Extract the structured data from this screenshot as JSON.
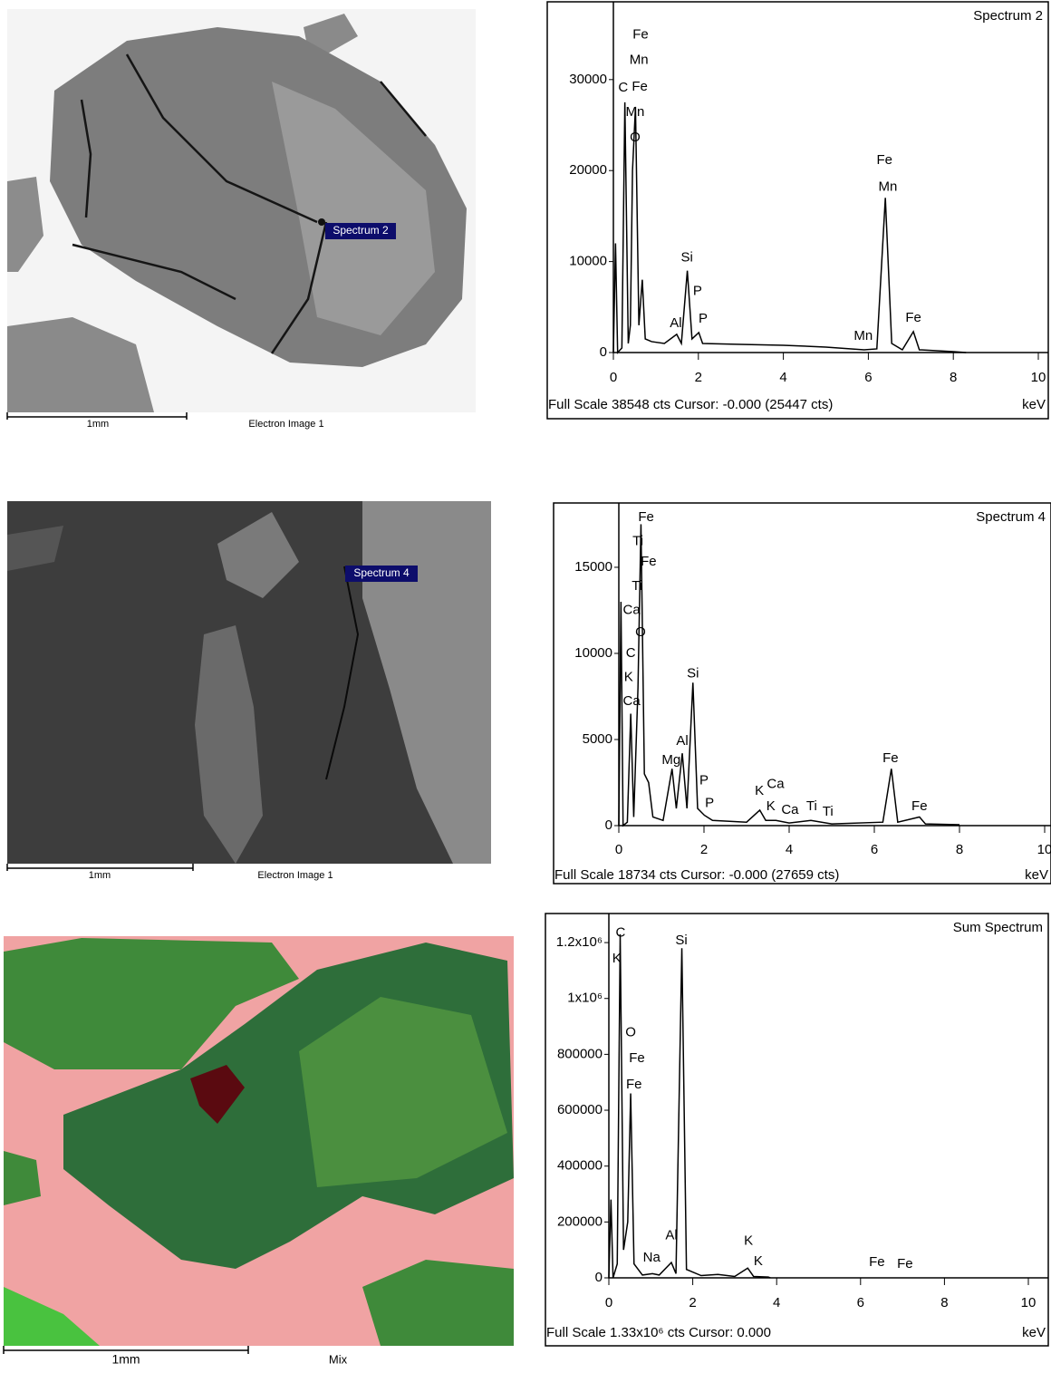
{
  "images": [
    {
      "marker": "Spectrum 2",
      "scale_bar": "1mm",
      "label": "Electron Image 1"
    },
    {
      "marker": "Spectrum 4",
      "scale_bar": "1mm",
      "label": "Electron Image 1"
    },
    {
      "scale_bar": "1mm",
      "label": "Mix"
    }
  ],
  "chart_data": [
    {
      "type": "line",
      "title": "Spectrum 2",
      "footer": "Full Scale 38548 cts Cursor: -0.000  (25447 cts)",
      "xlabel": "keV",
      "xlim": [
        0,
        10
      ],
      "xticks": [
        0,
        2,
        4,
        6,
        8,
        10
      ],
      "ylim": [
        0,
        38548
      ],
      "yticks": [
        0,
        10000,
        20000,
        30000
      ],
      "x": [
        0,
        0.05,
        0.1,
        0.2,
        0.27,
        0.35,
        0.4,
        0.45,
        0.52,
        0.6,
        0.68,
        0.75,
        0.9,
        1.2,
        1.49,
        1.6,
        1.74,
        1.85,
        2.01,
        2.1,
        3,
        4,
        5,
        5.9,
        6.2,
        6.4,
        6.55,
        6.8,
        7.06,
        7.2,
        8,
        8.3
      ],
      "series": [
        {
          "color": "#000000",
          "values": [
            0,
            12000,
            0,
            500,
            27500,
            1000,
            3000,
            20000,
            27000,
            3000,
            8000,
            1500,
            1200,
            1000,
            2000,
            1000,
            9000,
            1500,
            2200,
            1000,
            900,
            800,
            600,
            300,
            400,
            17000,
            1000,
            300,
            2300,
            300,
            100,
            0
          ]
        }
      ],
      "annotations": [
        {
          "text": "Fe",
          "x": 0.64,
          "y": 34900
        },
        {
          "text": "Mn",
          "x": 0.6,
          "y": 32100
        },
        {
          "text": "C",
          "x": 0.23,
          "y": 29100
        },
        {
          "text": "Fe",
          "x": 0.62,
          "y": 29200
        },
        {
          "text": "Mn",
          "x": 0.51,
          "y": 26400
        },
        {
          "text": "O",
          "x": 0.51,
          "y": 23600
        },
        {
          "text": "Si",
          "x": 1.73,
          "y": 10400
        },
        {
          "text": "P",
          "x": 1.98,
          "y": 6700
        },
        {
          "text": "Al",
          "x": 1.47,
          "y": 3200
        },
        {
          "text": "P",
          "x": 2.11,
          "y": 3700
        },
        {
          "text": "Fe",
          "x": 6.38,
          "y": 21100
        },
        {
          "text": "Mn",
          "x": 6.46,
          "y": 18200
        },
        {
          "text": "Mn",
          "x": 5.88,
          "y": 1800
        },
        {
          "text": "Fe",
          "x": 7.06,
          "y": 3800
        }
      ]
    },
    {
      "type": "line",
      "title": "Spectrum 4",
      "footer": "Full Scale 18734 cts Cursor: -0.000  (27659 cts)",
      "xlabel": "keV",
      "xlim": [
        0,
        10
      ],
      "xticks": [
        0,
        2,
        4,
        6,
        8,
        10
      ],
      "ylim": [
        0,
        18734
      ],
      "yticks": [
        0,
        5000,
        10000,
        15000
      ],
      "x": [
        0,
        0.05,
        0.1,
        0.2,
        0.28,
        0.35,
        0.45,
        0.52,
        0.6,
        0.7,
        0.8,
        1.04,
        1.25,
        1.35,
        1.49,
        1.6,
        1.74,
        1.85,
        2.01,
        2.2,
        3,
        3.31,
        3.45,
        3.69,
        4,
        4.51,
        5,
        6.2,
        6.4,
        6.55,
        7.06,
        7.2,
        8
      ],
      "series": [
        {
          "color": "#000000",
          "values": [
            0,
            13000,
            0,
            200,
            6500,
            500,
            8000,
            17500,
            3000,
            2500,
            500,
            300,
            3300,
            1000,
            4200,
            1000,
            8300,
            1000,
            600,
            300,
            200,
            900,
            300,
            300,
            150,
            300,
            100,
            200,
            3300,
            200,
            500,
            100,
            50
          ]
        }
      ],
      "annotations": [
        {
          "text": "Fe",
          "x": 0.64,
          "y": 17900
        },
        {
          "text": "Ti",
          "x": 0.45,
          "y": 16500
        },
        {
          "text": "Fe",
          "x": 0.7,
          "y": 15300
        },
        {
          "text": "Ti",
          "x": 0.43,
          "y": 13900
        },
        {
          "text": "Ca",
          "x": 0.3,
          "y": 12500
        },
        {
          "text": "O",
          "x": 0.51,
          "y": 11200
        },
        {
          "text": "C",
          "x": 0.28,
          "y": 10000
        },
        {
          "text": "K",
          "x": 0.23,
          "y": 8600
        },
        {
          "text": "Ca",
          "x": 0.3,
          "y": 7200
        },
        {
          "text": "Si",
          "x": 1.74,
          "y": 8800
        },
        {
          "text": "Al",
          "x": 1.49,
          "y": 4900
        },
        {
          "text": "Mg",
          "x": 1.23,
          "y": 3800
        },
        {
          "text": "P",
          "x": 2,
          "y": 2600
        },
        {
          "text": "P",
          "x": 2.13,
          "y": 1300
        },
        {
          "text": "K",
          "x": 3.3,
          "y": 2000
        },
        {
          "text": "Ca",
          "x": 3.68,
          "y": 2400
        },
        {
          "text": "K",
          "x": 3.57,
          "y": 1100
        },
        {
          "text": "Ca",
          "x": 4.02,
          "y": 900
        },
        {
          "text": "Ti",
          "x": 4.53,
          "y": 1100
        },
        {
          "text": "Ti",
          "x": 4.91,
          "y": 800
        },
        {
          "text": "Fe",
          "x": 6.38,
          "y": 3900
        },
        {
          "text": "Fe",
          "x": 7.06,
          "y": 1100
        }
      ]
    },
    {
      "type": "line",
      "title": "Sum Spectrum",
      "footer": "Full Scale 1.33x10⁶ cts Cursor: 0.000",
      "xlabel": "keV",
      "xlim": [
        0,
        10
      ],
      "xticks": [
        0,
        2,
        4,
        6,
        8,
        10
      ],
      "ylim": [
        0,
        1330000
      ],
      "yticks": [
        0,
        200000,
        400000,
        600000,
        800000,
        {
          "value": 1000000,
          "label": "1x10⁶"
        },
        {
          "value": 1200000,
          "label": "1.2x10⁶"
        }
      ],
      "x": [
        0,
        0.05,
        0.1,
        0.2,
        0.27,
        0.35,
        0.45,
        0.52,
        0.6,
        0.8,
        1.04,
        1.2,
        1.49,
        1.6,
        1.74,
        1.85,
        2.2,
        2.6,
        3,
        3.31,
        3.45,
        3.8,
        3.85
      ],
      "series": [
        {
          "color": "#000000",
          "values": [
            0,
            280000,
            0,
            50000,
            1230000,
            100000,
            200000,
            660000,
            50000,
            10000,
            15000,
            10000,
            55000,
            15000,
            1180000,
            30000,
            8000,
            12000,
            5000,
            35000,
            5000,
            3000,
            0
          ]
        }
      ],
      "annotations": [
        {
          "text": "C",
          "x": 0.28,
          "y": 1235000
        },
        {
          "text": "K",
          "x": 0.19,
          "y": 1141000
        },
        {
          "text": "Si",
          "x": 1.73,
          "y": 1206000
        },
        {
          "text": "O",
          "x": 0.52,
          "y": 878000
        },
        {
          "text": "Fe",
          "x": 0.67,
          "y": 785000
        },
        {
          "text": "Fe",
          "x": 0.6,
          "y": 691000
        },
        {
          "text": "Al",
          "x": 1.49,
          "y": 151000
        },
        {
          "text": "Na",
          "x": 1.02,
          "y": 71000
        },
        {
          "text": "K",
          "x": 3.33,
          "y": 132000
        },
        {
          "text": "K",
          "x": 3.56,
          "y": 58000
        },
        {
          "text": "Fe",
          "x": 6.39,
          "y": 55000
        },
        {
          "text": "Fe",
          "x": 7.06,
          "y": 48000
        }
      ]
    }
  ]
}
